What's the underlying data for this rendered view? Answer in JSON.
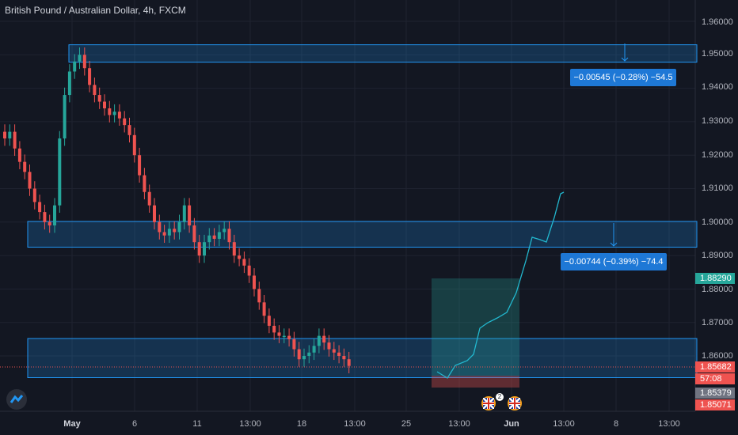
{
  "title": "British Pound / Australian Dollar, 4h, FXCM",
  "y_axis_labels": [
    "1.96000",
    "1.95000",
    "1.94000",
    "1.93000",
    "1.92000",
    "1.91000",
    "1.90000",
    "1.89000",
    "1.88000",
    "1.87000",
    "1.86000"
  ],
  "x_axis_labels": [
    "May",
    "6",
    "11",
    "13:00",
    "18",
    "13:00",
    "25",
    "13:00",
    "Jun",
    "13:00",
    "8",
    "13:00"
  ],
  "price_tags": {
    "current": "1.88290",
    "last": "1.85682",
    "countdown": "57:08",
    "grey": "1.85379",
    "red": "1.85071"
  },
  "measure_labels": {
    "top": "−0.00545 (−0.28%) −54.5",
    "middle": "−0.00744 (−0.39%) −74.4"
  },
  "event_badge_count": "2",
  "colors": {
    "background": "#131722",
    "bull": "#26a69a",
    "bear": "#ef5350",
    "zone_fill": "#1e3a5f",
    "zone_border": "#2196f3",
    "projection": "#22b8cf"
  },
  "chart_data": {
    "type": "candlestick",
    "symbol": "GBPAUD",
    "timeframe": "4h",
    "ylim": [
      1.85,
      1.965
    ],
    "support_resistance_zones": [
      {
        "low": 1.9478,
        "high": 1.953
      },
      {
        "low": 1.8925,
        "high": 1.9002
      },
      {
        "low": 1.8535,
        "high": 1.8652
      }
    ],
    "path_close": [
      1.925,
      1.927,
      1.922,
      1.918,
      1.915,
      1.91,
      1.906,
      1.903,
      1.9,
      1.899,
      1.905,
      1.925,
      1.938,
      1.945,
      1.948,
      1.95,
      1.946,
      1.941,
      1.938,
      1.936,
      1.934,
      1.932,
      1.933,
      1.931,
      1.929,
      1.926,
      1.92,
      1.914,
      1.909,
      1.905,
      1.9,
      1.897,
      1.896,
      1.898,
      1.897,
      1.9,
      1.905,
      1.899,
      1.894,
      1.89,
      1.894,
      1.896,
      1.895,
      1.897,
      1.898,
      1.894,
      1.89,
      1.889,
      1.887,
      1.884,
      1.88,
      1.876,
      1.872,
      1.869,
      1.867,
      1.866,
      1.866,
      1.865,
      1.862,
      1.859,
      1.86,
      1.861,
      1.863,
      1.866,
      1.864,
      1.862,
      1.861,
      1.86,
      1.859,
      1.857
    ],
    "projection_target": 1.9085
  }
}
